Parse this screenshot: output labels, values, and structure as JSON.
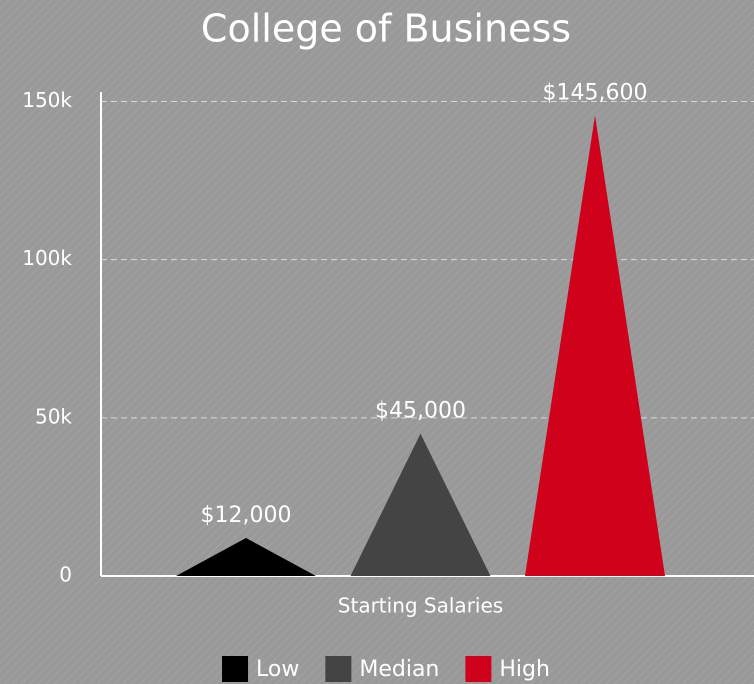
{
  "chart_data": {
    "type": "bar",
    "bar_shape": "triangle",
    "title": "College of Business",
    "categories": [
      "Starting Salaries"
    ],
    "series": [
      {
        "name": "Low",
        "color": "#000000",
        "values": [
          12000
        ],
        "value_labels": [
          "$12,000"
        ]
      },
      {
        "name": "Median",
        "color": "#444444",
        "values": [
          45000
        ],
        "value_labels": [
          "$45,000"
        ]
      },
      {
        "name": "High",
        "color": "#d0021b",
        "values": [
          145600
        ],
        "value_labels": [
          "$145,600"
        ]
      }
    ],
    "ylim": [
      0,
      153000
    ],
    "yticks": [
      0,
      {
        "value": 50000,
        "label": "50k"
      },
      {
        "value": 100000,
        "label": "100k"
      },
      {
        "value": 150000,
        "label": "150k"
      }
    ],
    "grid": true,
    "legend": "bottom"
  }
}
